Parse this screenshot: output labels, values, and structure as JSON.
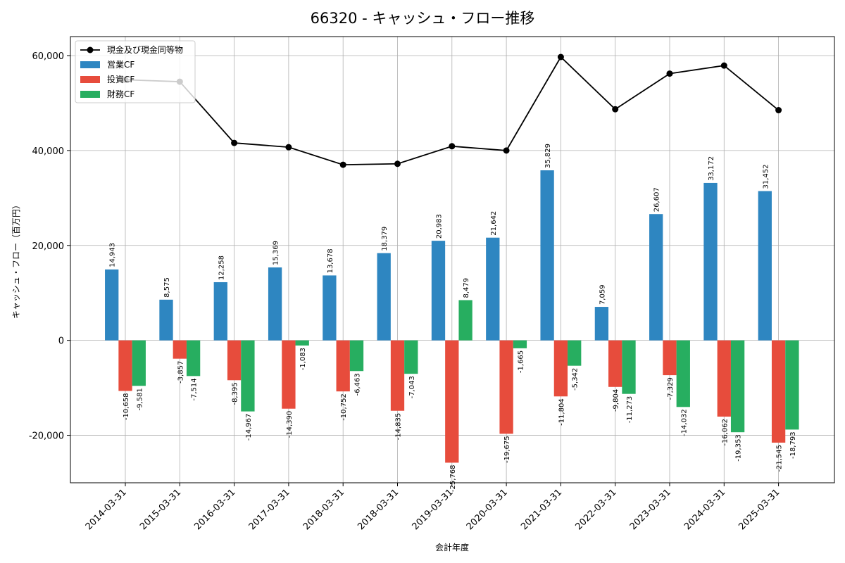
{
  "chart_data": {
    "type": "bar",
    "title": "66320 - キャッシュ・フロー推移",
    "xlabel": "会計年度",
    "ylabel": "キャッシュ・フロー（百万円）",
    "ylim": [
      -30000,
      64000
    ],
    "yticks": [
      -20000,
      0,
      20000,
      40000,
      60000
    ],
    "ytick_labels": [
      "-20,000",
      "0",
      "20,000",
      "40,000",
      "60,000"
    ],
    "grid": true,
    "legend_position": "top-left",
    "categories": [
      "2014-03-31",
      "2015-03-31",
      "2016-03-31",
      "2017-03-31",
      "2018-03-31",
      "2018-03-31",
      "2019-03-31",
      "2020-03-31",
      "2021-03-31",
      "2022-03-31",
      "2023-03-31",
      "2024-03-31",
      "2025-03-31"
    ],
    "series": [
      {
        "name": "営業CF",
        "kind": "bar",
        "color": "#2e86c1",
        "values": [
          14943,
          8575,
          12258,
          15369,
          13678,
          18379,
          20983,
          21642,
          35829,
          7059,
          26607,
          33172,
          31452
        ],
        "labels": [
          "14,943",
          "8,575",
          "12,258",
          "15,369",
          "13,678",
          "18,379",
          "20,983",
          "21,642",
          "35,829",
          "7,059",
          "26,607",
          "33,172",
          "31,452"
        ]
      },
      {
        "name": "投資CF",
        "kind": "bar",
        "color": "#e74c3c",
        "values": [
          -10658,
          -3857,
          -8395,
          -14390,
          -10752,
          -14835,
          -25768,
          -19675,
          -11804,
          -9804,
          -7329,
          -16062,
          -21545
        ],
        "labels": [
          "-10,658",
          "-3,857",
          "-8,395",
          "-14,390",
          "-10,752",
          "-14,835",
          "-25,768",
          "-19,675",
          "-11,804",
          "-9,804",
          "-7,329",
          "-16,062",
          "-21,545"
        ]
      },
      {
        "name": "財務CF",
        "kind": "bar",
        "color": "#27ae60",
        "values": [
          -9581,
          -7514,
          -14967,
          -1083,
          -6463,
          -7043,
          8479,
          -1665,
          -5342,
          -11273,
          -14032,
          -19353,
          -18793
        ],
        "labels": [
          "-9,581",
          "-7,514",
          "-14,967",
          "-1,083",
          "-6,463",
          "-7,043",
          "8,479",
          "-1,665",
          "-5,342",
          "-11,273",
          "-14,032",
          "-19,353",
          "-18,793"
        ]
      },
      {
        "name": "現金及び現金同等物",
        "kind": "line",
        "color": "#000000",
        "values": [
          54900,
          54500,
          41600,
          40700,
          37000,
          37200,
          40900,
          40000,
          59700,
          48700,
          56200,
          57900,
          48500
        ]
      }
    ]
  }
}
